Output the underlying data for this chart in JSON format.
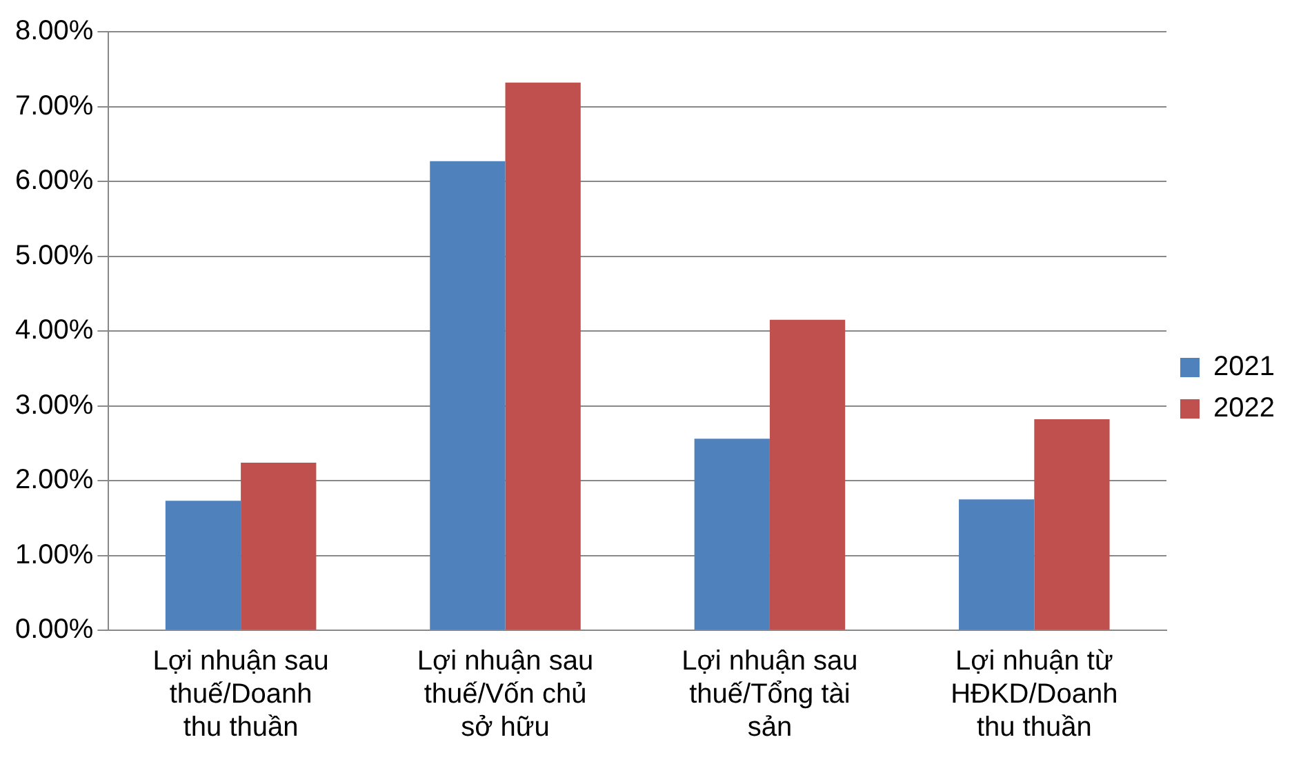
{
  "chart_data": {
    "type": "bar",
    "categories": [
      "Lợi nhuận sau thuế/Doanh thu thuần",
      "Lợi nhuận sau thuế/Vốn chủ sở hữu",
      "Lợi nhuận sau thuế/Tổng tài sản",
      "Lợi nhuận từ HĐKD/Doanh thu thuần"
    ],
    "series": [
      {
        "name": "2021",
        "color": "#4f81bd",
        "values": [
          1.73,
          6.27,
          2.56,
          1.75
        ]
      },
      {
        "name": "2022",
        "color": "#c0504d",
        "values": [
          2.24,
          7.32,
          4.15,
          2.82
        ]
      }
    ],
    "ylim": [
      0,
      8
    ],
    "yticks": [
      {
        "value": 0,
        "label": "0.00%"
      },
      {
        "value": 1,
        "label": "1.00%"
      },
      {
        "value": 2,
        "label": "2.00%"
      },
      {
        "value": 3,
        "label": "3.00%"
      },
      {
        "value": 4,
        "label": "4.00%"
      },
      {
        "value": 5,
        "label": "5.00%"
      },
      {
        "value": 6,
        "label": "6.00%"
      },
      {
        "value": 7,
        "label": "7.00%"
      },
      {
        "value": 8,
        "label": "8.00%"
      }
    ],
    "grid": "y",
    "legend": "right"
  }
}
